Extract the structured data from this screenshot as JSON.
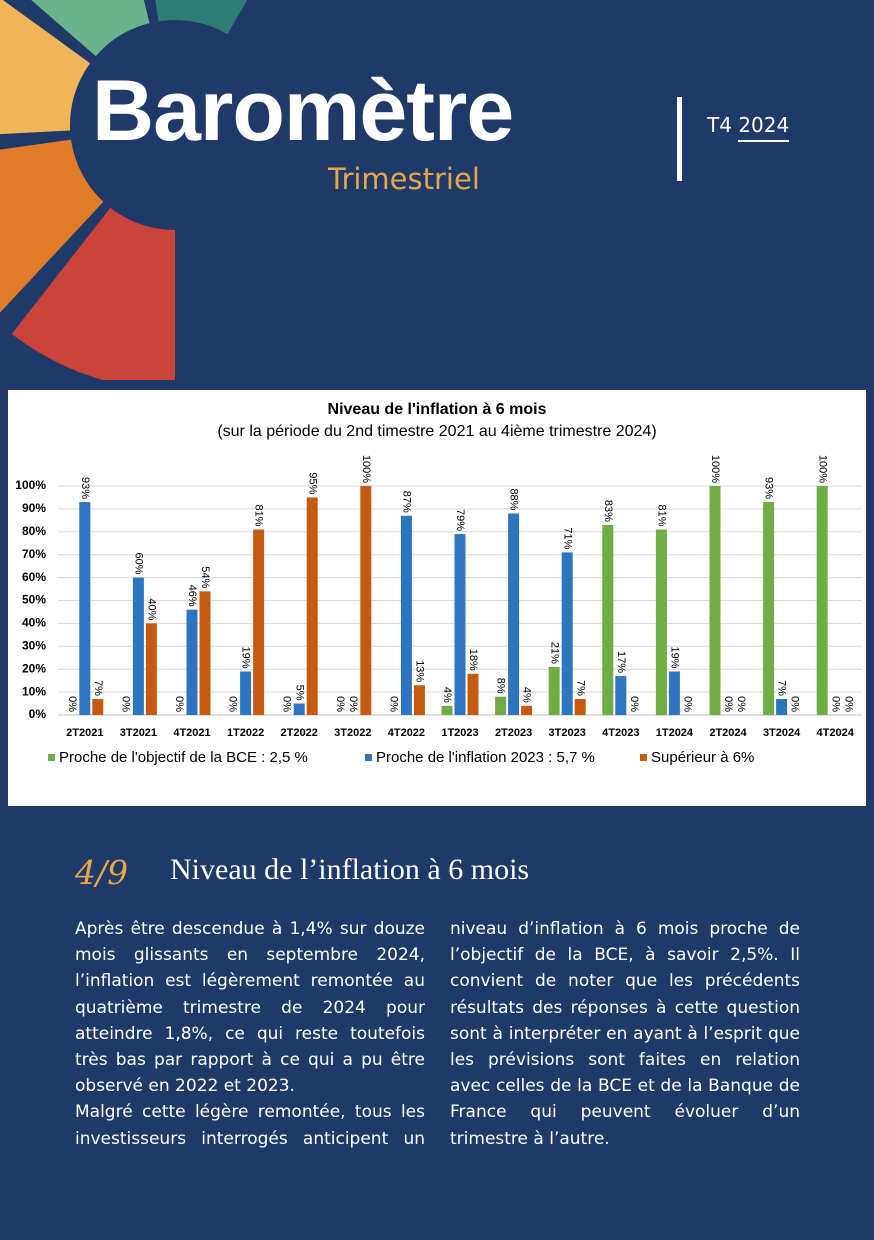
{
  "header": {
    "title": "Baromètre",
    "subtitle": "Trimestriel",
    "edition": "T4",
    "year": "2024"
  },
  "chart_data": {
    "type": "bar",
    "title": "Niveau de l'inflation à 6 mois",
    "subtitle": "(sur la période du 2nd timestre 2021 au 4ième trimestre 2024)",
    "categories": [
      "2T2021",
      "3T2021",
      "4T2021",
      "1T2022",
      "2T2022",
      "3T2022",
      "4T2022",
      "1T2023",
      "2T2023",
      "3T2023",
      "4T2023",
      "1T2024",
      "2T2024",
      "3T2024",
      "4T2024"
    ],
    "series": [
      {
        "name": "Proche de l'objectif de la BCE : 2,5 %",
        "color": "#70ad47",
        "values": [
          0,
          0,
          0,
          0,
          0,
          0,
          0,
          4,
          8,
          21,
          83,
          81,
          100,
          93,
          100
        ],
        "value_labels": [
          "0%",
          "0%",
          "0%",
          "0%",
          "0%",
          "0%",
          "0%",
          "4%",
          "8%",
          "21%",
          "83%",
          "81%",
          "100%",
          "93%",
          "100%"
        ]
      },
      {
        "name": "Proche de l'inflation 2023 : 5,7 %",
        "color": "#2e75c0",
        "values": [
          93,
          60,
          46,
          19,
          5,
          0,
          87,
          79,
          88,
          71,
          17,
          19,
          0,
          7,
          0
        ],
        "value_labels": [
          "93%",
          "60%",
          "46%",
          "19%",
          "5%",
          "0%",
          "87%",
          "79%",
          "88%",
          "71%",
          "17%",
          "19%",
          "0%",
          "7%",
          "0%"
        ]
      },
      {
        "name": "Supérieur à 6%",
        "color": "#c55a11",
        "values": [
          7,
          40,
          54,
          81,
          95,
          100,
          13,
          18,
          4,
          7,
          0,
          0,
          0,
          0,
          0
        ],
        "value_labels": [
          "7%",
          "40%",
          "54%",
          "81%",
          "95%",
          "100%",
          "13%",
          "18%",
          "4%",
          "7%",
          "0%",
          "0%",
          "0%",
          "0%",
          "0%"
        ]
      }
    ],
    "ylim": [
      0,
      100
    ],
    "yticks": [
      {
        "value": 0,
        "label": "0%"
      },
      {
        "value": 10,
        "label": "10%"
      },
      {
        "value": 20,
        "label": "20%"
      },
      {
        "value": 30,
        "label": "30%"
      },
      {
        "value": 40,
        "label": "40%"
      },
      {
        "value": 50,
        "label": "50%"
      },
      {
        "value": 60,
        "label": "60%"
      },
      {
        "value": 70,
        "label": "70%"
      },
      {
        "value": 80,
        "label": "80%"
      },
      {
        "value": 90,
        "label": "90%"
      },
      {
        "value": 100,
        "label": "100%"
      }
    ],
    "grid": true,
    "legend": "bottom"
  },
  "section": {
    "number": "4/9",
    "title": "Niveau de l’inflation à 6 mois",
    "paragraphs": [
      "Après être descendue à 1,4% sur douze mois glissants en septembre 2024, l’inflation est légèrement remontée au quatrième trimestre de 2024 pour atteindre 1,8%, ce qui reste toutefois très bas par rapport à ce qui a pu être observé en 2022 et 2023.",
      "Malgré cette légère remontée, tous les investisseurs interrogés anticipent un niveau d’inflation à 6 mois proche de l’objectif de la BCE, à savoir 2,5%. Il convient de noter que les précédents résultats des réponses à cette question sont à interpréter en ayant à l’esprit que les prévisions sont faites en relation avec celles de la BCE et de la Banque de France qui peuvent évoluer d’un trimestre à l’autre."
    ]
  }
}
